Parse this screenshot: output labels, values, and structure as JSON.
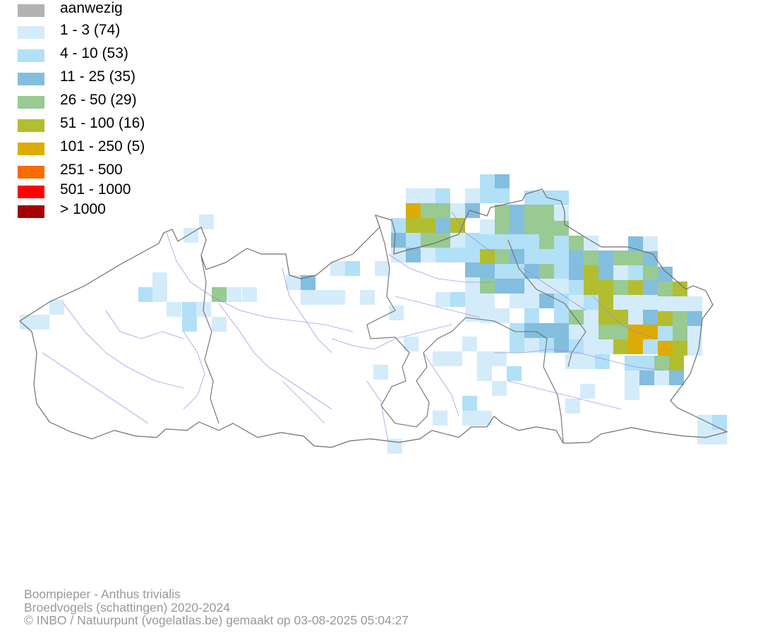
{
  "legend": {
    "items": [
      {
        "label": "aanwezig",
        "color": "#b3b3b3"
      },
      {
        "label": "1 - 3 (74)",
        "color": "#d4ebfa"
      },
      {
        "label": "4 - 10 (53)",
        "color": "#b2e0f7"
      },
      {
        "label": "11 - 25 (35)",
        "color": "#83bedf"
      },
      {
        "label": "26 - 50 (29)",
        "color": "#98ca91"
      },
      {
        "label": "51 - 100 (16)",
        "color": "#b3bd30"
      },
      {
        "label": "101 - 250 (5)",
        "color": "#dcac05"
      },
      {
        "label": "251 - 500",
        "color": "#fc6a03"
      },
      {
        "label": "501 - 1000",
        "color": "#fc0303"
      },
      {
        "label": "> 1000",
        "color": "#a10303"
      }
    ]
  },
  "credits": {
    "line1": "Boompieper - Anthus trivialis",
    "line2": "Broedvogels (schattingen) 2020-2024",
    "line3": "© INBO / Natuurpunt (vogelatlas.be) gemaakt op 03-08-2025 05:04:27"
  }
}
